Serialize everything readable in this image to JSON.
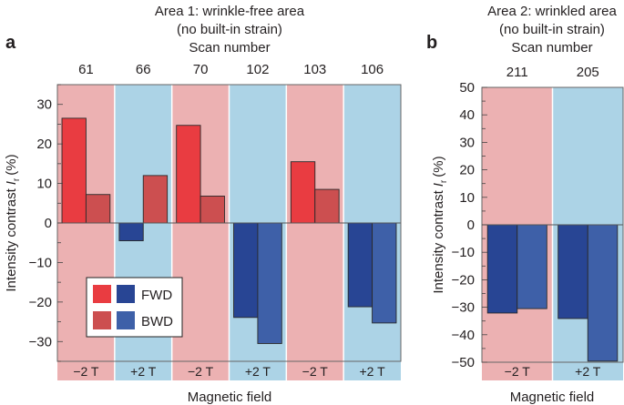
{
  "chart_data": [
    {
      "type": "bar",
      "panel_label": "a",
      "title": "Area 1: wrinkle-free area",
      "subtitle": "(no built-in strain)",
      "top_axis_label": "Scan number",
      "categories": [
        "61",
        "66",
        "70",
        "102",
        "103",
        "106"
      ],
      "field": [
        "−2 T",
        "+2 T",
        "−2 T",
        "+2 T",
        "−2 T",
        "+2 T"
      ],
      "xlabel": "Magnetic field",
      "ylabel": "Intensity contrast",
      "ylabel_symbol": "I",
      "ylabel_subscript": "r",
      "ylabel_unit": "(%)",
      "ylim": [
        -35,
        35
      ],
      "yticks": [
        30,
        20,
        10,
        0,
        -10,
        -20,
        -30
      ],
      "series": [
        {
          "name": "FWD",
          "values": [
            26.5,
            -4.5,
            24.7,
            -23.9,
            15.5,
            -21.2
          ]
        },
        {
          "name": "BWD",
          "values": [
            7.2,
            12.0,
            6.8,
            -30.5,
            8.5,
            -25.3
          ]
        }
      ],
      "legend": {
        "placement": "bottom-left",
        "entries": [
          "FWD",
          "BWD"
        ]
      }
    },
    {
      "type": "bar",
      "panel_label": "b",
      "title": "Area 2: wrinkled area",
      "subtitle": "(no built-in strain)",
      "top_axis_label": "Scan number",
      "categories": [
        "211",
        "205"
      ],
      "field": [
        "−2 T",
        "+2 T"
      ],
      "xlabel": "Magnetic field",
      "ylabel": "Intensity contrast",
      "ylabel_symbol": "I",
      "ylabel_subscript": "r",
      "ylabel_unit": "(%)",
      "ylim": [
        -50,
        50
      ],
      "yticks": [
        50,
        40,
        30,
        20,
        10,
        0,
        -10,
        -20,
        -30,
        -40,
        -50
      ],
      "series": [
        {
          "name": "FWD",
          "values": [
            -32.1,
            -34.1
          ]
        },
        {
          "name": "BWD",
          "values": [
            -30.5,
            -49.6
          ]
        }
      ]
    }
  ],
  "colors": {
    "neg_field_bg": "#ecb1b2",
    "pos_field_bg": "#acd3e6",
    "fwd_positive": "#e93c41",
    "bwd_positive": "#cc4f50",
    "fwd_negative": "#284594",
    "bwd_negative": "#3e60a8"
  }
}
